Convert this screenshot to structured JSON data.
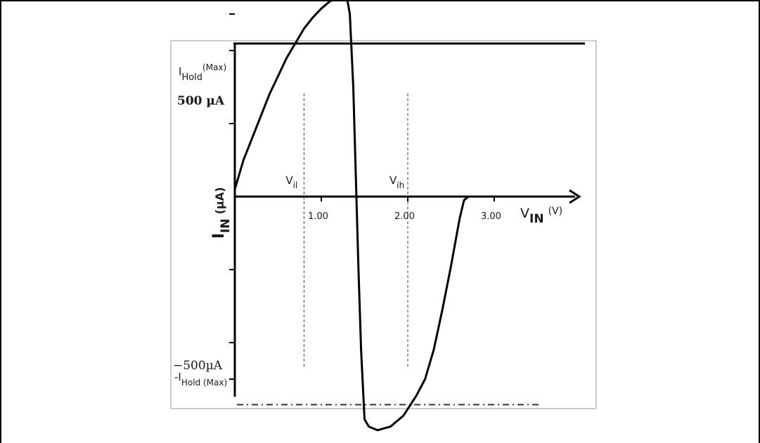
{
  "chart_data": {
    "type": "line",
    "x_axis": {
      "ticks": [
        {
          "value": 1.0,
          "label": "1.00"
        },
        {
          "value": 2.0,
          "label": "2.00"
        },
        {
          "value": 3.0,
          "label": "3.00"
        }
      ],
      "xlim": [
        0,
        4.0
      ],
      "label_main": "V",
      "label_sub": "IN",
      "label_unit": "(V)"
    },
    "y_axis": {
      "ylim": [
        -650,
        650
      ],
      "label_main": "I",
      "label_sub": "IN",
      "label_unit": "(µA)",
      "top_label": "500 µA",
      "bottom_label": "−500µA",
      "top_value": 500,
      "bottom_value": -500,
      "minor_ticks": [
        -400,
        -200,
        200,
        400
      ]
    },
    "reference_lines": [
      {
        "name_main": "I",
        "name_sub": "Hold",
        "name_sup": "(Max)",
        "value": 570,
        "style": "dash-dot"
      },
      {
        "name_main": "-I",
        "name_sub": "Hold (Max)",
        "value": -570,
        "style": "dash-dot"
      }
    ],
    "vertical_markers": [
      {
        "name_main": "V",
        "name_sub": "il",
        "value": 0.8
      },
      {
        "name_main": "V",
        "name_sub": "ih",
        "value": 2.0
      }
    ],
    "series": [
      {
        "points": [
          [
            0.0,
            20
          ],
          [
            0.1,
            100
          ],
          [
            0.2,
            160
          ],
          [
            0.3,
            220
          ],
          [
            0.4,
            280
          ],
          [
            0.5,
            330
          ],
          [
            0.6,
            380
          ],
          [
            0.7,
            420
          ],
          [
            0.8,
            460
          ],
          [
            0.9,
            490
          ],
          [
            1.0,
            515
          ],
          [
            1.1,
            535
          ],
          [
            1.2,
            545
          ],
          [
            1.25,
            545
          ],
          [
            1.3,
            540
          ],
          [
            1.33,
            500
          ],
          [
            1.37,
            300
          ],
          [
            1.4,
            50
          ],
          [
            1.43,
            -200
          ],
          [
            1.46,
            -420
          ],
          [
            1.5,
            -610
          ],
          [
            1.55,
            -630
          ],
          [
            1.65,
            -640
          ],
          [
            1.8,
            -630
          ],
          [
            1.95,
            -600
          ],
          [
            2.1,
            -545
          ],
          [
            2.2,
            -500
          ],
          [
            2.3,
            -420
          ],
          [
            2.4,
            -310
          ],
          [
            2.5,
            -190
          ],
          [
            2.6,
            -60
          ],
          [
            2.65,
            -10
          ],
          [
            2.7,
            0
          ]
        ]
      }
    ]
  }
}
